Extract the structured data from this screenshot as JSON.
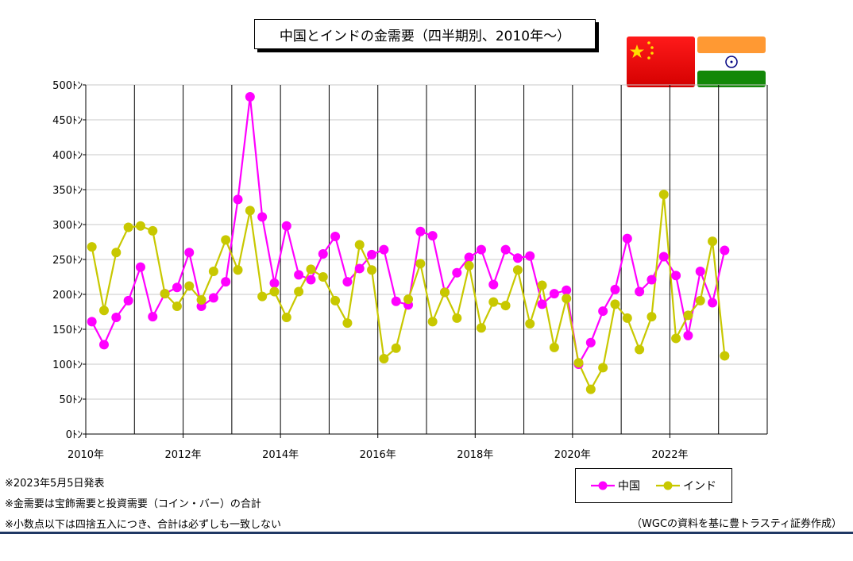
{
  "title": "中国とインドの金需要（四半期別、2010年～）",
  "notes": [
    "※2023年5月5日発表",
    "※金需要は宝飾需要と投資需要（コイン・バー）の合計",
    "※小数点以下は四捨五入につき、合計は必ずしも一致しない"
  ],
  "source": "（WGCの資料を基に豊トラスティ証券作成）",
  "flags": [
    {
      "country": "中国",
      "icon": "china-flag-icon"
    },
    {
      "country": "インド",
      "icon": "india-flag-icon"
    }
  ],
  "chart_data": {
    "type": "line",
    "y_ticks": [
      "500ﾄﾝ",
      "450ﾄﾝ",
      "400ﾄﾝ",
      "350ﾄﾝ",
      "300ﾄﾝ",
      "250ﾄﾝ",
      "200ﾄﾝ",
      "150ﾄﾝ",
      "100ﾄﾝ",
      "50ﾄﾝ",
      "0ﾄﾝ"
    ],
    "ylim": [
      0,
      500
    ],
    "x_ticks": [
      "2010年",
      "2012年",
      "2014年",
      "2016年",
      "2018年",
      "2020年",
      "2022年"
    ],
    "grid": true,
    "x": [
      "2010Q1",
      "2010Q2",
      "2010Q3",
      "2010Q4",
      "2011Q1",
      "2011Q2",
      "2011Q3",
      "2011Q4",
      "2012Q1",
      "2012Q2",
      "2012Q3",
      "2012Q4",
      "2013Q1",
      "2013Q2",
      "2013Q3",
      "2013Q4",
      "2014Q1",
      "2014Q2",
      "2014Q3",
      "2014Q4",
      "2015Q1",
      "2015Q2",
      "2015Q3",
      "2015Q4",
      "2016Q1",
      "2016Q2",
      "2016Q3",
      "2016Q4",
      "2017Q1",
      "2017Q2",
      "2017Q3",
      "2017Q4",
      "2018Q1",
      "2018Q2",
      "2018Q3",
      "2018Q4",
      "2019Q1",
      "2019Q2",
      "2019Q3",
      "2019Q4",
      "2020Q1",
      "2020Q2",
      "2020Q3",
      "2020Q4",
      "2021Q1",
      "2021Q2",
      "2021Q3",
      "2021Q4",
      "2022Q1",
      "2022Q2",
      "2022Q3",
      "2022Q4",
      "2023Q1"
    ],
    "series": [
      {
        "name": "中国",
        "color": "#ff00ff",
        "values": [
          161,
          128,
          167,
          191,
          239,
          168,
          201,
          210,
          260,
          183,
          195,
          218,
          336,
          483,
          311,
          216,
          298,
          228,
          221,
          258,
          283,
          218,
          237,
          257,
          264,
          190,
          185,
          290,
          284,
          203,
          231,
          253,
          264,
          214,
          264,
          252,
          255,
          186,
          201,
          206,
          100,
          131,
          176,
          207,
          280,
          204,
          221,
          254,
          227,
          141,
          233,
          188,
          263
        ]
      },
      {
        "name": "インド",
        "color": "#c8c800",
        "values": [
          268,
          177,
          260,
          296,
          298,
          291,
          201,
          183,
          212,
          192,
          233,
          278,
          235,
          320,
          197,
          204,
          167,
          204,
          236,
          225,
          191,
          159,
          271,
          235,
          108,
          123,
          193,
          244,
          161,
          203,
          166,
          241,
          152,
          189,
          184,
          235,
          158,
          213,
          124,
          194,
          102,
          64,
          95,
          186,
          166,
          121,
          168,
          343,
          137,
          170,
          191,
          276,
          112
        ]
      }
    ]
  }
}
